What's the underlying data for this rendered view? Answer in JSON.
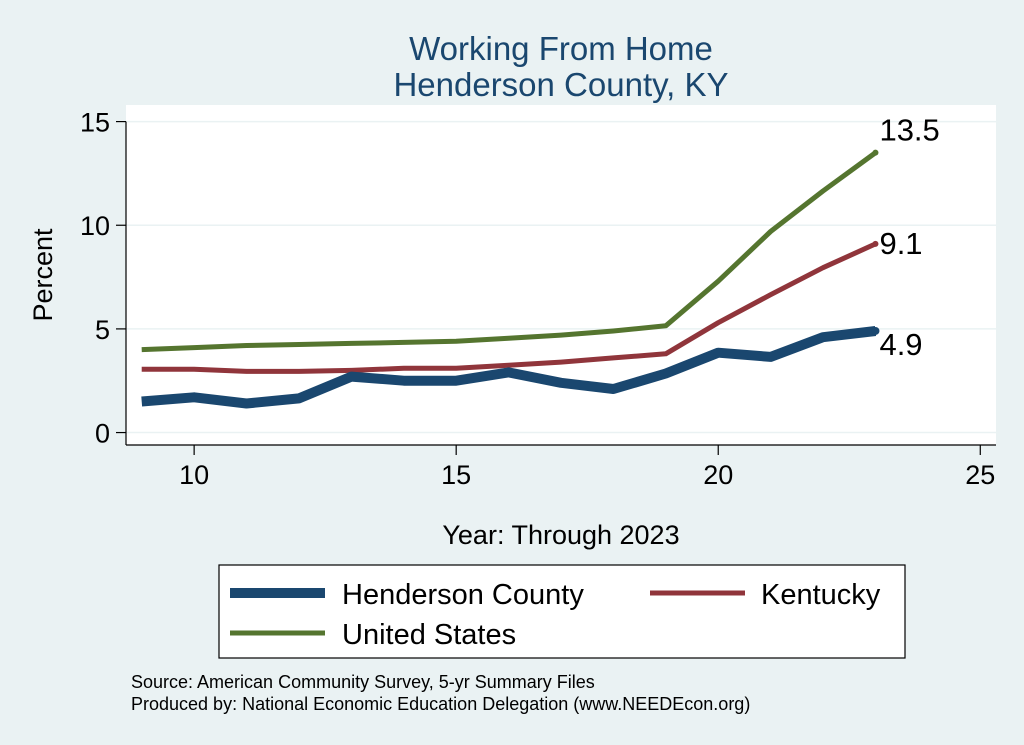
{
  "chart_data": {
    "type": "line",
    "title": [
      "Working From Home",
      "Henderson County, KY"
    ],
    "xlabel": "Year: Through 2023",
    "ylabel": "Percent",
    "xlim": [
      8.7,
      25.3
    ],
    "ylim": [
      -0.6,
      15.8
    ],
    "xticks": [
      10,
      15,
      20,
      25
    ],
    "yticks": [
      0,
      5,
      10,
      15
    ],
    "grid": true,
    "legend_position": "bottom",
    "x": [
      9,
      10,
      11,
      12,
      13,
      14,
      15,
      16,
      17,
      18,
      19,
      20,
      21,
      22,
      23
    ],
    "series": [
      {
        "name": "Henderson County",
        "color": "#1A476F",
        "values": [
          1.5,
          1.7,
          1.4,
          1.65,
          2.7,
          2.5,
          2.5,
          2.9,
          2.4,
          2.1,
          2.85,
          3.85,
          3.65,
          4.6,
          4.9
        ],
        "end_label": "4.9"
      },
      {
        "name": "Kentucky",
        "color": "#90353B",
        "values": [
          3.05,
          3.05,
          2.95,
          2.95,
          3.0,
          3.1,
          3.1,
          3.25,
          3.4,
          3.6,
          3.8,
          5.3,
          6.65,
          7.95,
          9.1
        ],
        "end_label": "9.1"
      },
      {
        "name": "United States",
        "color": "#55752F",
        "values": [
          4.0,
          4.1,
          4.2,
          4.25,
          4.3,
          4.35,
          4.4,
          4.55,
          4.7,
          4.9,
          5.15,
          7.3,
          9.7,
          11.65,
          13.5
        ],
        "end_label": "13.5"
      }
    ],
    "notes": [
      "Source: American Community Survey, 5-yr Summary Files",
      "Produced by: National Economic Education Delegation (www.NEEDEcon.org)"
    ]
  }
}
